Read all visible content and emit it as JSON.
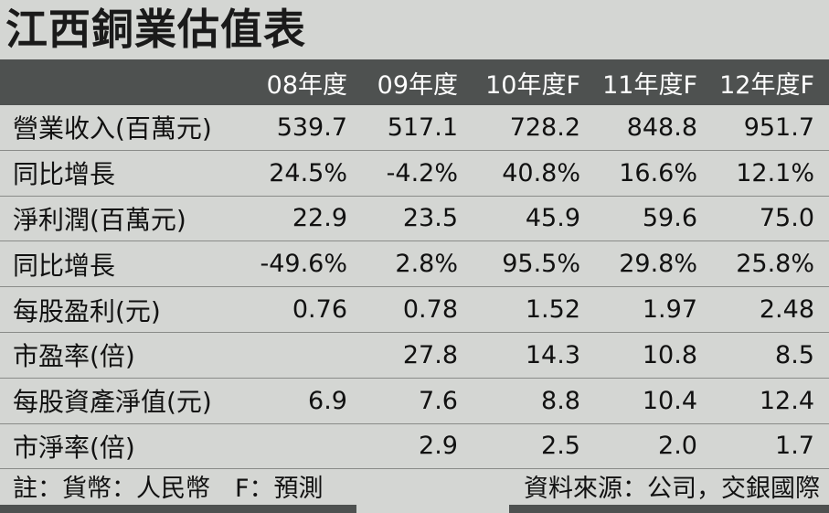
{
  "title": "江西銅業估值表",
  "header": [
    "",
    "08年度",
    "09年度",
    "10年度F",
    "11年度F",
    "12年度F"
  ],
  "rows": [
    {
      "label": "營業收入(百萬元)",
      "values": [
        "539.7",
        "517.1",
        "728.2",
        "848.8",
        "951.7"
      ]
    },
    {
      "label": "同比增長",
      "values": [
        "24.5%",
        "-4.2%",
        "40.8%",
        "16.6%",
        "12.1%"
      ]
    },
    {
      "label": "淨利潤(百萬元)",
      "values": [
        "22.9",
        "23.5",
        "45.9",
        "59.6",
        "75.0"
      ]
    },
    {
      "label": "同比增長",
      "values": [
        "-49.6%",
        "2.8%",
        "95.5%",
        "29.8%",
        "25.8%"
      ]
    },
    {
      "label": "每股盈利(元)",
      "values": [
        "0.76",
        "0.78",
        "1.52",
        "1.97",
        "2.48"
      ]
    },
    {
      "label": "市盈率(倍)",
      "values": [
        "",
        "27.8",
        "14.3",
        "10.8",
        "8.5"
      ]
    },
    {
      "label": "每股資產淨值(元)",
      "values": [
        "6.9",
        "7.6",
        "8.8",
        "10.4",
        "12.4"
      ]
    },
    {
      "label": "市淨率(倍)",
      "values": [
        "",
        "2.9",
        "2.5",
        "2.0",
        "1.7"
      ]
    }
  ],
  "footer": {
    "note": "註：貨幣：人民幣　F：預測",
    "source": "資料來源：公司，交銀國際"
  }
}
